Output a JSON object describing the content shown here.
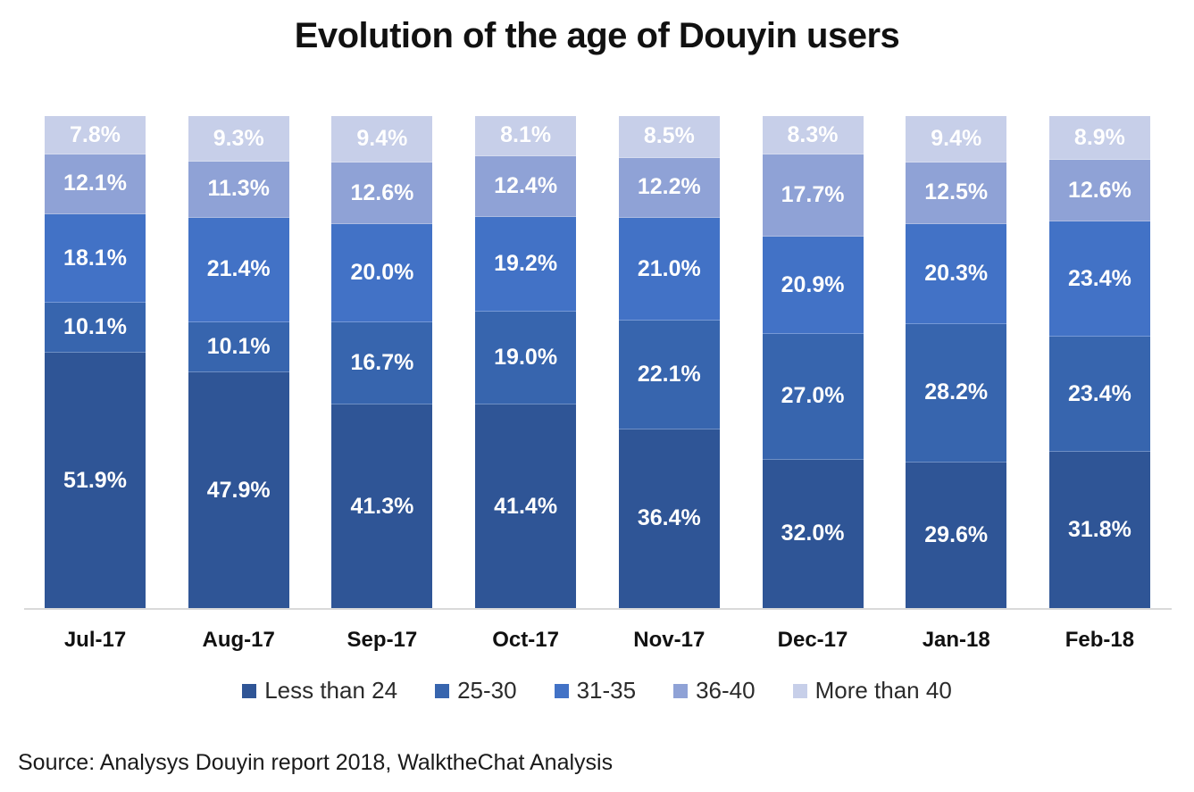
{
  "page": {
    "title": "Evolution of the age of Douyin users",
    "source_note": "Source: Analysys Douyin report 2018, WalktheChat Analysis"
  },
  "colors": {
    "axis_line": "#d9d9d9",
    "segment_label_text": "#ffffff",
    "title_text": "#111111",
    "legend_text": "#2b2b2b"
  },
  "chart_data": {
    "type": "bar",
    "stacked": true,
    "normalized_100_percent": true,
    "title": "Evolution of the age of Douyin users",
    "xlabel": "",
    "ylabel": "",
    "grid": false,
    "legend_position": "bottom",
    "value_suffix": "%",
    "categories": [
      "Jul-17",
      "Aug-17",
      "Sep-17",
      "Oct-17",
      "Nov-17",
      "Dec-17",
      "Jan-18",
      "Feb-18"
    ],
    "series": [
      {
        "name": "Less than 24",
        "color": "#2F5596",
        "values": [
          51.9,
          47.9,
          41.3,
          41.4,
          36.4,
          32.0,
          29.6,
          31.8
        ]
      },
      {
        "name": "25-30",
        "color": "#3765AE",
        "values": [
          10.1,
          10.1,
          16.7,
          19.0,
          22.1,
          27.0,
          28.2,
          23.4
        ]
      },
      {
        "name": "31-35",
        "color": "#4272C6",
        "values": [
          18.1,
          21.4,
          20.0,
          19.2,
          21.0,
          20.9,
          20.3,
          23.4
        ]
      },
      {
        "name": "36-40",
        "color": "#8FA2D6",
        "values": [
          12.1,
          11.3,
          12.6,
          12.4,
          12.2,
          17.7,
          12.5,
          12.6
        ]
      },
      {
        "name": "More than 40",
        "color": "#C7CFE9",
        "values": [
          7.8,
          9.3,
          9.4,
          8.1,
          8.5,
          8.3,
          9.4,
          8.9
        ]
      }
    ]
  }
}
